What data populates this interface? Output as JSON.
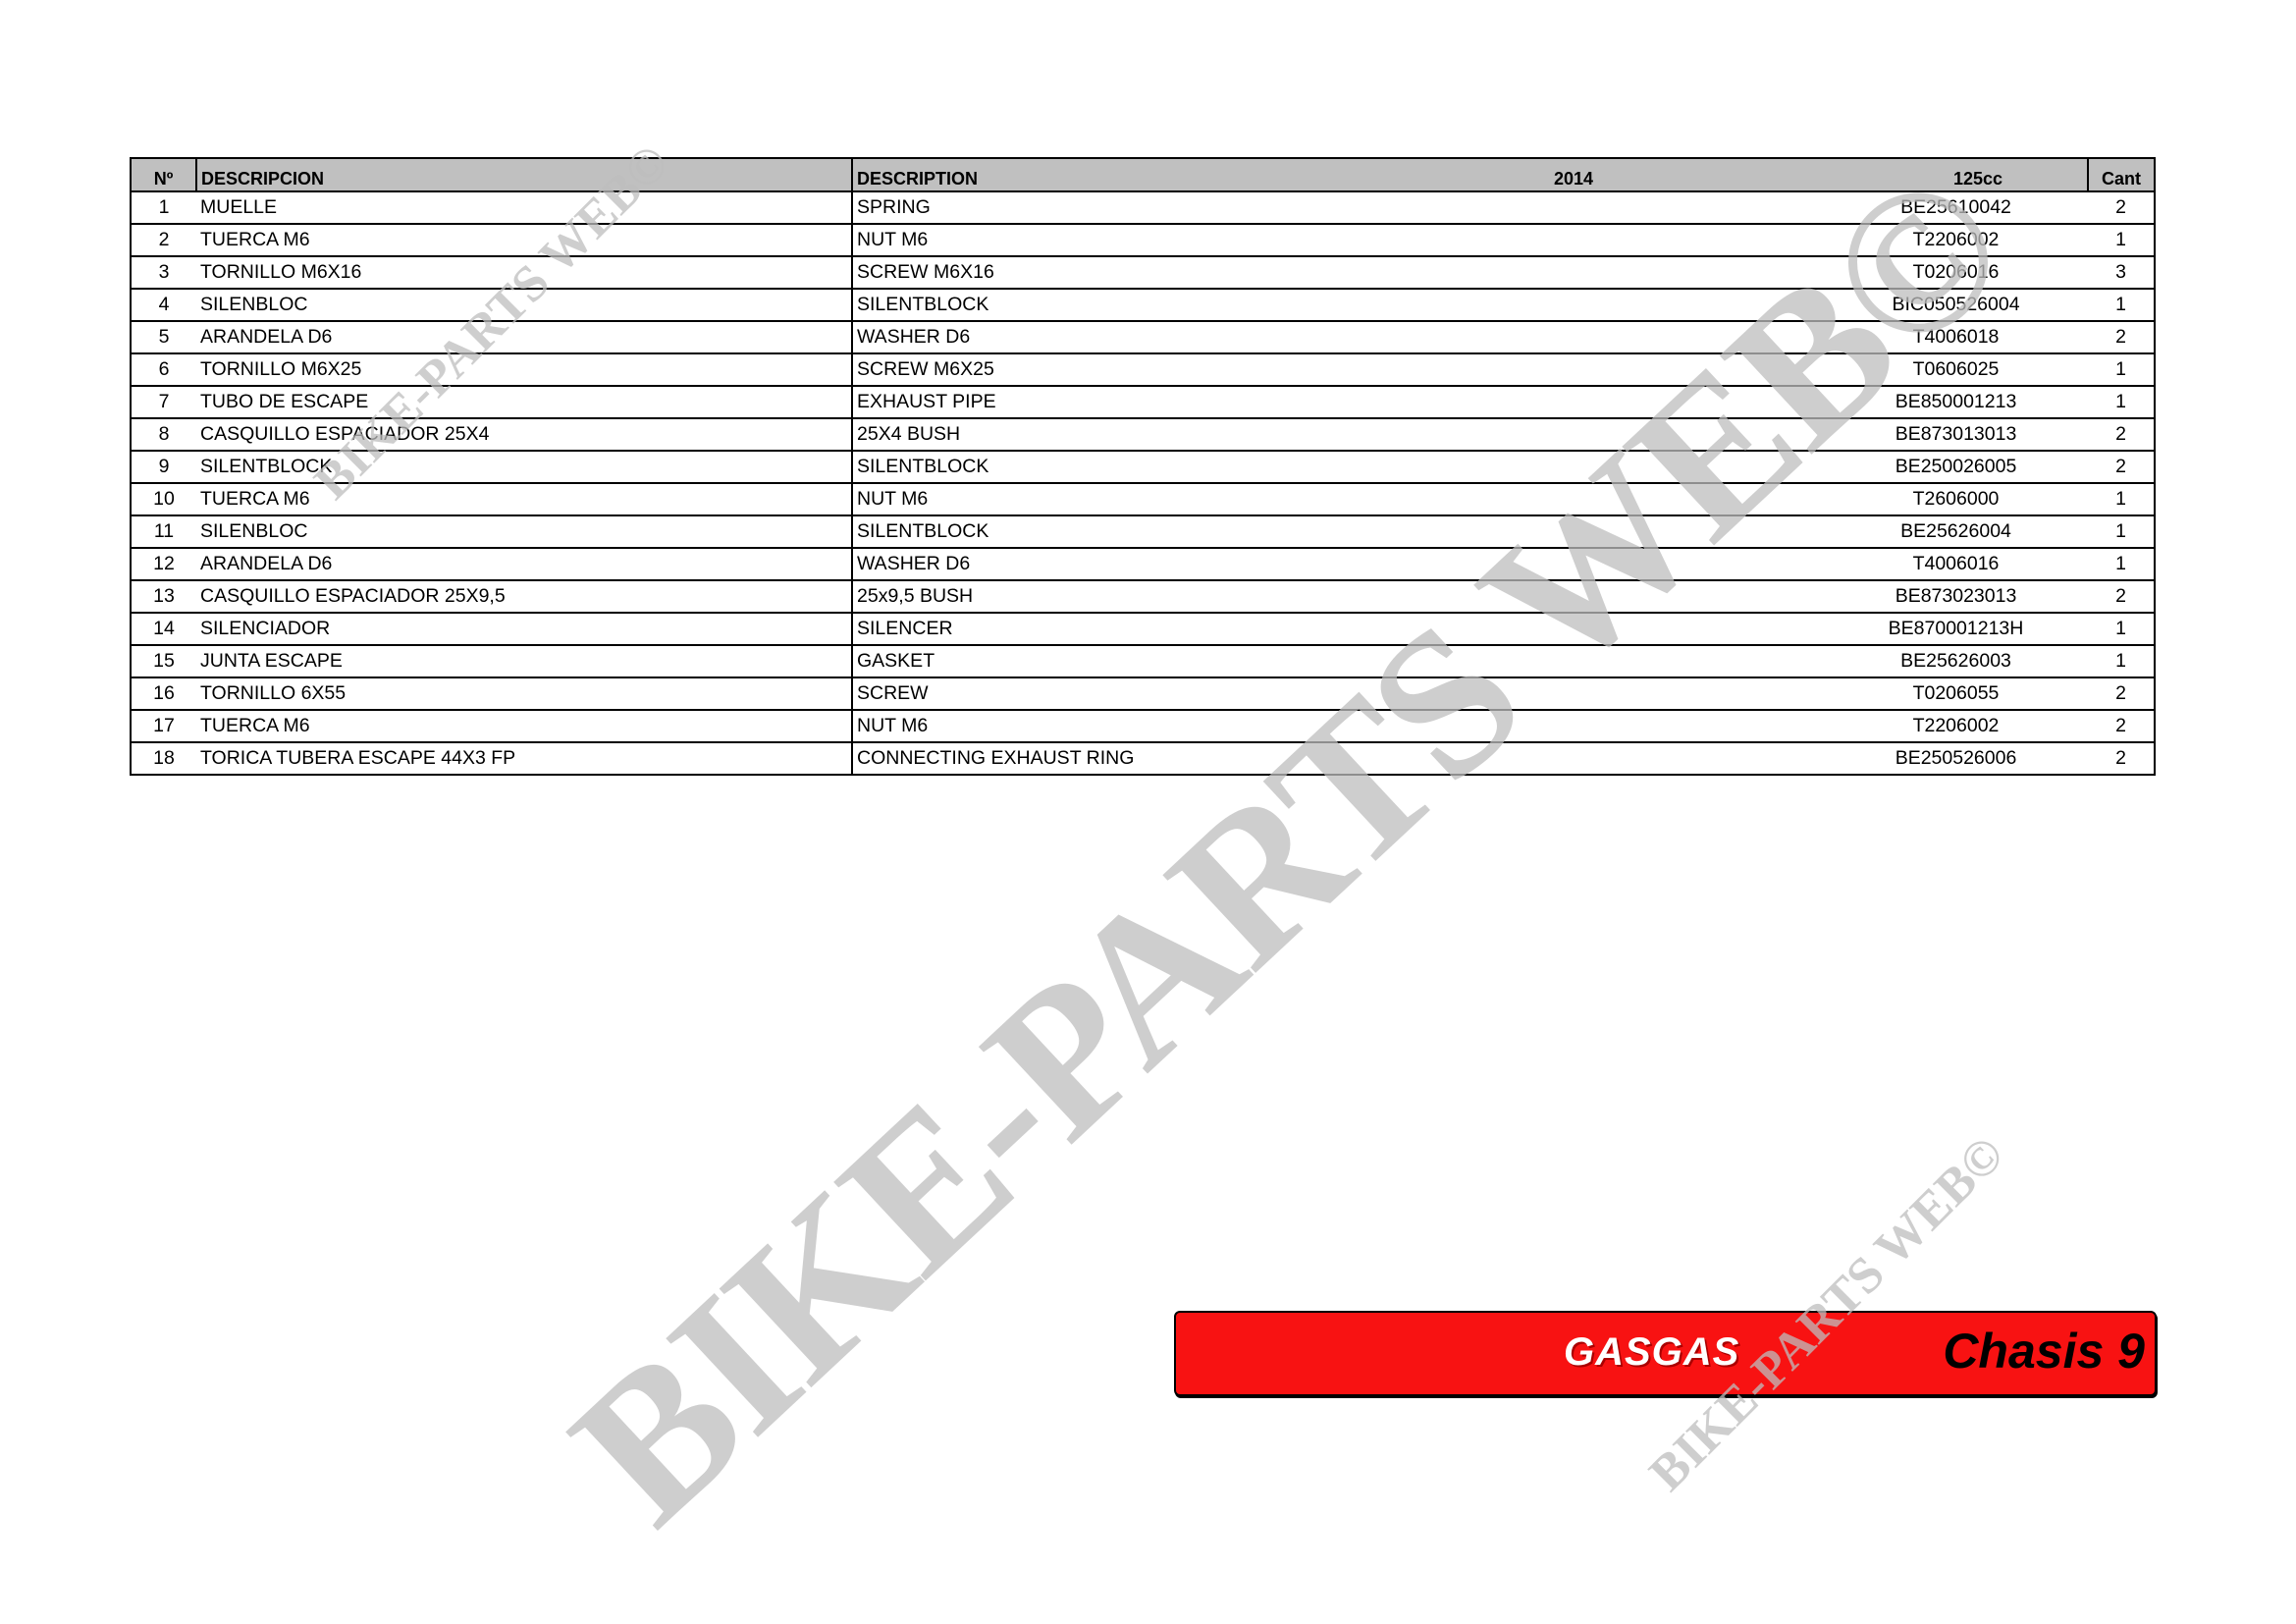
{
  "table": {
    "headers": {
      "no": "Nº",
      "descripcion": "DESCRIPCION",
      "description": "DESCRIPTION",
      "year": "2014",
      "model": "125cc",
      "cant": "Cant"
    },
    "rows": [
      {
        "no": "1",
        "es": "MUELLE",
        "en": "SPRING",
        "ref": "BE25610042",
        "qty": "2"
      },
      {
        "no": "2",
        "es": "TUERCA M6",
        "en": "NUT M6",
        "ref": "T2206002",
        "qty": "1"
      },
      {
        "no": "3",
        "es": "TORNILLO M6X16",
        "en": "SCREW M6X16",
        "ref": "T0206016",
        "qty": "3"
      },
      {
        "no": "4",
        "es": "SILENBLOC",
        "en": "SILENTBLOCK",
        "ref": "BIC050526004",
        "qty": "1"
      },
      {
        "no": "5",
        "es": "ARANDELA D6",
        "en": "WASHER D6",
        "ref": "T4006018",
        "qty": "2"
      },
      {
        "no": "6",
        "es": "TORNILLO M6X25",
        "en": "SCREW M6X25",
        "ref": "T0606025",
        "qty": "1"
      },
      {
        "no": "7",
        "es": "TUBO DE ESCAPE",
        "en": "EXHAUST PIPE",
        "ref": "BE850001213",
        "qty": "1"
      },
      {
        "no": "8",
        "es": "CASQUILLO ESPACIADOR 25X4",
        "en": "25X4 BUSH",
        "ref": "BE873013013",
        "qty": "2"
      },
      {
        "no": "9",
        "es": "SILENTBLOCK",
        "en": "SILENTBLOCK",
        "ref": "BE250026005",
        "qty": "2"
      },
      {
        "no": "10",
        "es": "TUERCA M6",
        "en": "NUT M6",
        "ref": "T2606000",
        "qty": "1"
      },
      {
        "no": "11",
        "es": "SILENBLOC",
        "en": "SILENTBLOCK",
        "ref": "BE25626004",
        "qty": "1"
      },
      {
        "no": "12",
        "es": "ARANDELA D6",
        "en": "WASHER D6",
        "ref": "T4006016",
        "qty": "1"
      },
      {
        "no": "13",
        "es": "CASQUILLO ESPACIADOR 25X9,5",
        "en": "25x9,5 BUSH",
        "ref": "BE873023013",
        "qty": "2"
      },
      {
        "no": "14",
        "es": "SILENCIADOR",
        "en": "SILENCER",
        "ref": "BE870001213H",
        "qty": "1"
      },
      {
        "no": "15",
        "es": "JUNTA ESCAPE",
        "en": "GASKET",
        "ref": "BE25626003",
        "qty": "1"
      },
      {
        "no": "16",
        "es": "TORNILLO 6X55",
        "en": "SCREW",
        "ref": "T0206055",
        "qty": "2"
      },
      {
        "no": "17",
        "es": "TUERCA M6",
        "en": "NUT M6",
        "ref": "T2206002",
        "qty": "2"
      },
      {
        "no": "18",
        "es": "TORICA TUBERA ESCAPE 44X3 FP",
        "en": "CONNECTING EXHAUST RING",
        "ref": "BE250526006",
        "qty": "2"
      }
    ]
  },
  "banner": {
    "brand": "GASGAS",
    "section": "Chasis 9",
    "color": "#f81212"
  },
  "watermark": {
    "text": "BIKE-PARTS WEB©"
  }
}
